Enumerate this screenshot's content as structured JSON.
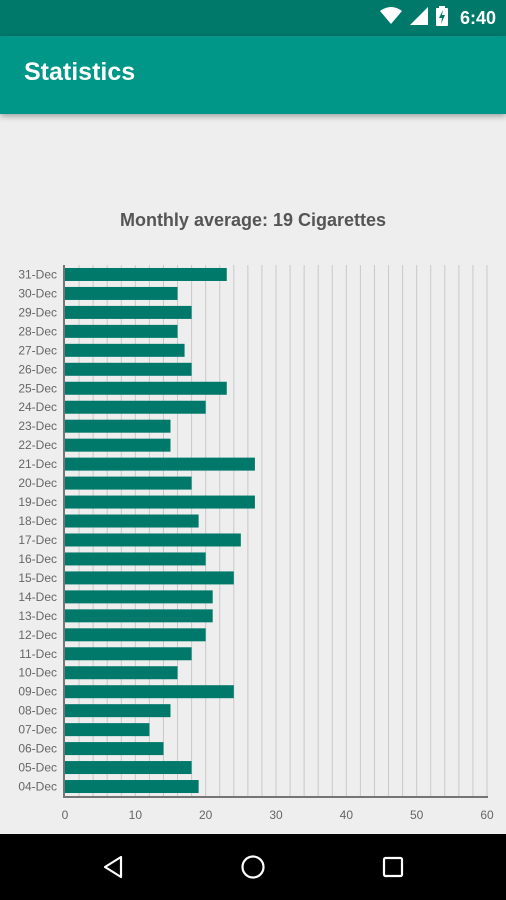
{
  "status_bar": {
    "time": "6:40"
  },
  "app_bar": {
    "title": "Statistics"
  },
  "header": {
    "average_text": "Monthly average: 19 Cigarettes"
  },
  "colors": {
    "bar": "#00796b",
    "app_bar": "#009688",
    "status_bar": "#00796b"
  },
  "chart_data": {
    "type": "bar",
    "orientation": "horizontal",
    "title": "",
    "xlabel": "",
    "ylabel": "",
    "xlim": [
      0,
      60
    ],
    "x_ticks": [
      "0",
      "10",
      "20",
      "30",
      "40",
      "50",
      "60"
    ],
    "grid": true,
    "categories": [
      "31-Dec",
      "30-Dec",
      "29-Dec",
      "28-Dec",
      "27-Dec",
      "26-Dec",
      "25-Dec",
      "24-Dec",
      "23-Dec",
      "22-Dec",
      "21-Dec",
      "20-Dec",
      "19-Dec",
      "18-Dec",
      "17-Dec",
      "16-Dec",
      "15-Dec",
      "14-Dec",
      "13-Dec",
      "12-Dec",
      "11-Dec",
      "10-Dec",
      "09-Dec",
      "08-Dec",
      "07-Dec",
      "06-Dec",
      "05-Dec",
      "04-Dec"
    ],
    "values": [
      23,
      16,
      18,
      16,
      17,
      18,
      23,
      20,
      15,
      15,
      27,
      18,
      27,
      19,
      25,
      20,
      24,
      21,
      21,
      20,
      18,
      16,
      24,
      15,
      12,
      14,
      18,
      19
    ]
  },
  "nav_bar": {
    "buttons": [
      "back-icon",
      "home-icon",
      "recents-icon"
    ]
  }
}
